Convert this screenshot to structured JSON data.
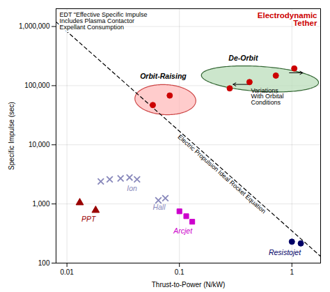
{
  "chart_data": {
    "type": "scatter",
    "xlabel": "Thrust-to-Power (N/kW)",
    "ylabel": "Specific Impulse (sec)",
    "log": true,
    "grid": true,
    "xlim": [
      0.008,
      1.8
    ],
    "ylim": [
      100,
      2000000
    ],
    "xticks": [
      0.01,
      0.1,
      1
    ],
    "yticks": [
      100,
      {
        "value": 1000,
        "label": "1,000"
      },
      {
        "value": 10000,
        "label": "10,000"
      },
      {
        "value": 100000,
        "label": "100,000"
      },
      {
        "value": 1000000,
        "label": "1,000,000"
      }
    ],
    "lines": [
      {
        "name": "Electric Propulsion Ideal Rocket Equation",
        "color": "black",
        "line_style": "dashed",
        "x": [
          0.008,
          1.8
        ],
        "values": [
          1200000,
          130
        ]
      }
    ],
    "series": [
      {
        "name": "Orbit-Raising",
        "color": "#cc0000",
        "marker": "circle",
        "x": [
          0.058,
          0.082
        ],
        "values": [
          47000,
          68000
        ],
        "ellipse": {
          "cx": 0.075,
          "cy": 58000,
          "width_log": 0.55,
          "height_log": 0.5,
          "angle": -25,
          "color": "#ffbbbb",
          "edge_color": "#cc4444"
        }
      },
      {
        "name": "De-Orbit",
        "color": "#cc0000",
        "marker": "circle",
        "x": [
          0.28,
          0.42,
          0.72,
          1.05
        ],
        "values": [
          90000,
          115000,
          148000,
          195000
        ],
        "ellipse": {
          "cx": 0.52,
          "cy": 130000,
          "width_log": 1.05,
          "height_log": 0.42,
          "angle": -8,
          "color": "#bbddbb",
          "edge_color": "#336633"
        }
      },
      {
        "name": "Ion",
        "color": "#8888bb",
        "marker": "x",
        "x": [
          0.02,
          0.024,
          0.03,
          0.036,
          0.042
        ],
        "values": [
          2400,
          2600,
          2700,
          2800,
          2600
        ]
      },
      {
        "name": "Hall",
        "color": "#8888bb",
        "marker": "x",
        "x": [
          0.065,
          0.075
        ],
        "values": [
          1150,
          1250
        ]
      },
      {
        "name": "PPT",
        "color": "#990000",
        "marker": "triangle",
        "x": [
          0.013,
          0.018
        ],
        "values": [
          1050,
          780
        ]
      },
      {
        "name": "Arcjet",
        "color": "#cc00cc",
        "marker": "square",
        "x": [
          0.1,
          0.115,
          0.13
        ],
        "values": [
          750,
          620,
          500
        ]
      },
      {
        "name": "Resistojet",
        "color": "#000066",
        "marker": "circle",
        "x": [
          1.0,
          1.2
        ],
        "values": [
          230,
          215
        ]
      }
    ],
    "annotations": [
      {
        "text": "Electrodynamic\nTether",
        "color": "#cc0000"
      },
      {
        "text": "EDT \"Effective Specific Impulse\nIncludes Plasma Contactor\nExpellant Consumption"
      },
      {
        "text": "Variations\nWith Orbital\nConditions"
      }
    ],
    "arrows": [
      {
        "x": [
          0.42,
          0.3
        ],
        "y": 105000
      },
      {
        "x": [
          0.95,
          1.25
        ],
        "y": 165000
      }
    ]
  }
}
